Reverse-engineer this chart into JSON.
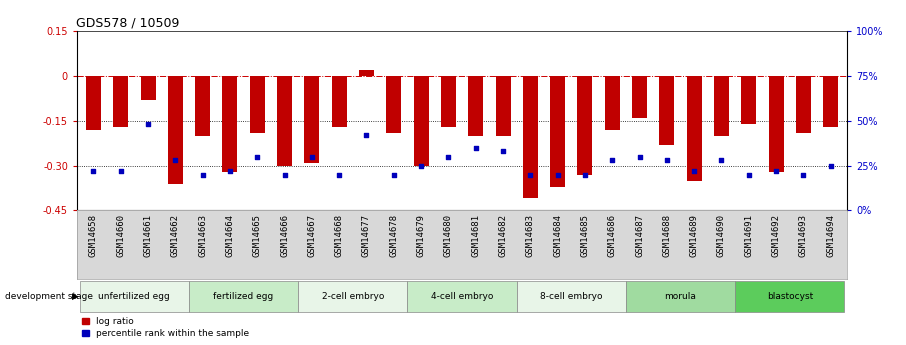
{
  "title": "GDS578 / 10509",
  "samples": [
    "GSM14658",
    "GSM14660",
    "GSM14661",
    "GSM14662",
    "GSM14663",
    "GSM14664",
    "GSM14665",
    "GSM14666",
    "GSM14667",
    "GSM14668",
    "GSM14677",
    "GSM14678",
    "GSM14679",
    "GSM14680",
    "GSM14681",
    "GSM14682",
    "GSM14683",
    "GSM14684",
    "GSM14685",
    "GSM14686",
    "GSM14687",
    "GSM14688",
    "GSM14689",
    "GSM14690",
    "GSM14691",
    "GSM14692",
    "GSM14693",
    "GSM14694"
  ],
  "log_ratio": [
    -0.18,
    -0.17,
    -0.08,
    -0.36,
    -0.2,
    -0.32,
    -0.19,
    -0.3,
    -0.29,
    -0.17,
    0.02,
    -0.19,
    -0.3,
    -0.17,
    -0.2,
    -0.2,
    -0.41,
    -0.37,
    -0.33,
    -0.18,
    -0.14,
    -0.23,
    -0.35,
    -0.2,
    -0.16,
    -0.32,
    -0.19,
    -0.17
  ],
  "percentile_rank": [
    22,
    22,
    48,
    28,
    20,
    22,
    30,
    20,
    30,
    20,
    42,
    20,
    25,
    30,
    35,
    33,
    20,
    20,
    20,
    28,
    30,
    28,
    22,
    28,
    20,
    22,
    20,
    25
  ],
  "groups": [
    {
      "label": "unfertilized egg",
      "start": 0,
      "end": 4,
      "color": "#e8f5e8"
    },
    {
      "label": "fertilized egg",
      "start": 4,
      "end": 8,
      "color": "#c8ecc8"
    },
    {
      "label": "2-cell embryo",
      "start": 8,
      "end": 12,
      "color": "#e8f5e8"
    },
    {
      "label": "4-cell embryo",
      "start": 12,
      "end": 16,
      "color": "#c8ecc8"
    },
    {
      "label": "8-cell embryo",
      "start": 16,
      "end": 20,
      "color": "#e8f5e8"
    },
    {
      "label": "morula",
      "start": 20,
      "end": 24,
      "color": "#a0dba0"
    },
    {
      "label": "blastocyst",
      "start": 24,
      "end": 28,
      "color": "#5ccc5c"
    }
  ],
  "bar_color": "#c00000",
  "dot_color": "#0000bb",
  "ylim_left": [
    -0.45,
    0.15
  ],
  "ylim_right": [
    0,
    100
  ],
  "hline_y0": 0.0,
  "hline_y1": -0.15,
  "hline_y2": -0.3,
  "right_ticks": [
    0,
    25,
    50,
    75,
    100
  ],
  "left_ticks": [
    -0.45,
    -0.3,
    -0.15,
    0.0,
    0.15
  ],
  "background_color": "#ffffff",
  "title_fontsize": 9,
  "tick_fontsize": 7,
  "bar_width": 0.55
}
